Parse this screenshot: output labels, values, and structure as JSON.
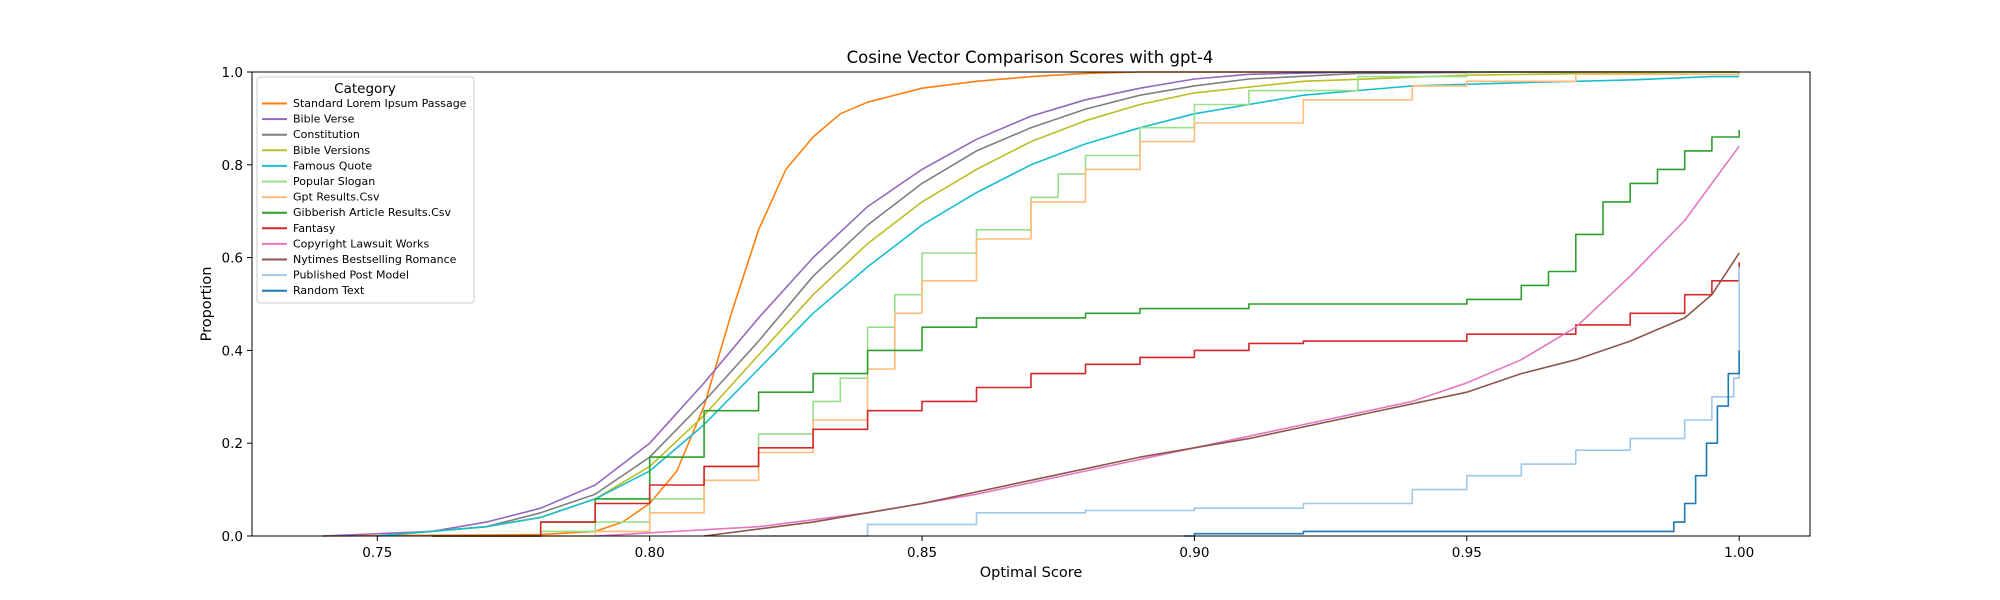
{
  "chart_data": {
    "type": "line",
    "title": "Cosine Vector Comparison Scores with gpt-4",
    "xlabel": "Optimal Score",
    "ylabel": "Proportion",
    "xlim": [
      0.727,
      1.013
    ],
    "ylim": [
      0,
      1.0
    ],
    "xticks": [
      "0.75",
      "0.80",
      "0.85",
      "0.90",
      "0.95",
      "1.00"
    ],
    "xtick_values": [
      0.75,
      0.8,
      0.85,
      0.9,
      0.95,
      1.0
    ],
    "yticks": [
      "0.0",
      "0.2",
      "0.4",
      "0.6",
      "0.8",
      "1.0"
    ],
    "ytick_values": [
      0.0,
      0.2,
      0.4,
      0.6,
      0.8,
      1.0
    ],
    "grid": false,
    "legend": {
      "title": "Category",
      "placement": "top-left"
    },
    "series": [
      {
        "name": "Standard Lorem Ipsum Passage",
        "color": "#ff7f0e",
        "step": false,
        "points": [
          [
            0.74,
            0.0
          ],
          [
            0.78,
            0.003
          ],
          [
            0.79,
            0.01
          ],
          [
            0.795,
            0.03
          ],
          [
            0.8,
            0.07
          ],
          [
            0.805,
            0.14
          ],
          [
            0.81,
            0.28
          ],
          [
            0.815,
            0.48
          ],
          [
            0.82,
            0.66
          ],
          [
            0.825,
            0.79
          ],
          [
            0.83,
            0.86
          ],
          [
            0.835,
            0.91
          ],
          [
            0.84,
            0.935
          ],
          [
            0.85,
            0.965
          ],
          [
            0.86,
            0.98
          ],
          [
            0.87,
            0.99
          ],
          [
            0.88,
            0.997
          ],
          [
            0.89,
            1.0
          ],
          [
            1.0,
            1.0
          ]
        ]
      },
      {
        "name": "Bible Verse",
        "color": "#9467bd",
        "step": false,
        "points": [
          [
            0.74,
            0.0
          ],
          [
            0.76,
            0.01
          ],
          [
            0.77,
            0.03
          ],
          [
            0.78,
            0.06
          ],
          [
            0.79,
            0.11
          ],
          [
            0.8,
            0.2
          ],
          [
            0.81,
            0.33
          ],
          [
            0.82,
            0.47
          ],
          [
            0.83,
            0.6
          ],
          [
            0.84,
            0.71
          ],
          [
            0.85,
            0.79
          ],
          [
            0.86,
            0.855
          ],
          [
            0.87,
            0.905
          ],
          [
            0.88,
            0.94
          ],
          [
            0.89,
            0.965
          ],
          [
            0.9,
            0.985
          ],
          [
            0.91,
            0.995
          ],
          [
            0.93,
            1.0
          ],
          [
            1.0,
            1.0
          ]
        ]
      },
      {
        "name": "Constitution",
        "color": "#7f7f7f",
        "step": false,
        "points": [
          [
            0.75,
            0.0
          ],
          [
            0.77,
            0.02
          ],
          [
            0.78,
            0.05
          ],
          [
            0.79,
            0.09
          ],
          [
            0.8,
            0.17
          ],
          [
            0.81,
            0.29
          ],
          [
            0.82,
            0.42
          ],
          [
            0.83,
            0.56
          ],
          [
            0.84,
            0.67
          ],
          [
            0.85,
            0.76
          ],
          [
            0.86,
            0.83
          ],
          [
            0.87,
            0.88
          ],
          [
            0.88,
            0.92
          ],
          [
            0.89,
            0.95
          ],
          [
            0.9,
            0.97
          ],
          [
            0.91,
            0.985
          ],
          [
            0.93,
            0.997
          ],
          [
            0.96,
            1.0
          ],
          [
            1.0,
            1.0
          ]
        ]
      },
      {
        "name": "Bible Versions",
        "color": "#bcbd22",
        "step": false,
        "points": [
          [
            0.75,
            0.0
          ],
          [
            0.77,
            0.02
          ],
          [
            0.78,
            0.04
          ],
          [
            0.79,
            0.08
          ],
          [
            0.8,
            0.15
          ],
          [
            0.81,
            0.26
          ],
          [
            0.82,
            0.39
          ],
          [
            0.83,
            0.52
          ],
          [
            0.84,
            0.63
          ],
          [
            0.85,
            0.72
          ],
          [
            0.86,
            0.79
          ],
          [
            0.87,
            0.85
          ],
          [
            0.88,
            0.895
          ],
          [
            0.89,
            0.93
          ],
          [
            0.9,
            0.955
          ],
          [
            0.92,
            0.98
          ],
          [
            0.95,
            0.993
          ],
          [
            0.98,
            0.998
          ],
          [
            1.0,
            1.0
          ]
        ]
      },
      {
        "name": "Famous Quote",
        "color": "#17becf",
        "step": false,
        "points": [
          [
            0.75,
            0.0
          ],
          [
            0.77,
            0.02
          ],
          [
            0.78,
            0.04
          ],
          [
            0.79,
            0.08
          ],
          [
            0.8,
            0.14
          ],
          [
            0.81,
            0.24
          ],
          [
            0.82,
            0.36
          ],
          [
            0.83,
            0.48
          ],
          [
            0.84,
            0.58
          ],
          [
            0.85,
            0.67
          ],
          [
            0.86,
            0.74
          ],
          [
            0.87,
            0.8
          ],
          [
            0.88,
            0.845
          ],
          [
            0.89,
            0.88
          ],
          [
            0.9,
            0.91
          ],
          [
            0.92,
            0.95
          ],
          [
            0.94,
            0.97
          ],
          [
            0.96,
            0.977
          ],
          [
            0.98,
            0.983
          ],
          [
            0.995,
            0.99
          ],
          [
            1.0,
            0.99
          ]
        ]
      },
      {
        "name": "Popular Slogan",
        "color": "#98df8a",
        "step": true,
        "points": [
          [
            0.76,
            0.0
          ],
          [
            0.78,
            0.01
          ],
          [
            0.79,
            0.03
          ],
          [
            0.8,
            0.08
          ],
          [
            0.81,
            0.15
          ],
          [
            0.82,
            0.22
          ],
          [
            0.83,
            0.29
          ],
          [
            0.835,
            0.34
          ],
          [
            0.84,
            0.45
          ],
          [
            0.845,
            0.52
          ],
          [
            0.85,
            0.61
          ],
          [
            0.86,
            0.66
          ],
          [
            0.87,
            0.73
          ],
          [
            0.875,
            0.78
          ],
          [
            0.88,
            0.82
          ],
          [
            0.89,
            0.88
          ],
          [
            0.9,
            0.93
          ],
          [
            0.91,
            0.96
          ],
          [
            0.93,
            0.99
          ],
          [
            0.95,
            1.0
          ],
          [
            1.0,
            1.0
          ]
        ]
      },
      {
        "name": "Gpt Results.Csv",
        "color": "#ffbb78",
        "step": true,
        "points": [
          [
            0.77,
            0.0
          ],
          [
            0.79,
            0.01
          ],
          [
            0.8,
            0.05
          ],
          [
            0.81,
            0.12
          ],
          [
            0.82,
            0.18
          ],
          [
            0.83,
            0.25
          ],
          [
            0.84,
            0.36
          ],
          [
            0.845,
            0.48
          ],
          [
            0.85,
            0.55
          ],
          [
            0.86,
            0.64
          ],
          [
            0.87,
            0.72
          ],
          [
            0.88,
            0.79
          ],
          [
            0.89,
            0.85
          ],
          [
            0.9,
            0.89
          ],
          [
            0.92,
            0.94
          ],
          [
            0.94,
            0.97
          ],
          [
            0.95,
            0.98
          ],
          [
            0.97,
            0.995
          ],
          [
            1.0,
            1.0
          ]
        ]
      },
      {
        "name": "Gibberish Article Results.Csv",
        "color": "#2ca02c",
        "step": true,
        "points": [
          [
            0.76,
            0.0
          ],
          [
            0.78,
            0.03
          ],
          [
            0.79,
            0.08
          ],
          [
            0.8,
            0.17
          ],
          [
            0.81,
            0.27
          ],
          [
            0.82,
            0.31
          ],
          [
            0.83,
            0.35
          ],
          [
            0.84,
            0.4
          ],
          [
            0.85,
            0.45
          ],
          [
            0.86,
            0.47
          ],
          [
            0.88,
            0.48
          ],
          [
            0.89,
            0.49
          ],
          [
            0.91,
            0.5
          ],
          [
            0.95,
            0.51
          ],
          [
            0.96,
            0.54
          ],
          [
            0.965,
            0.57
          ],
          [
            0.97,
            0.65
          ],
          [
            0.975,
            0.72
          ],
          [
            0.98,
            0.76
          ],
          [
            0.985,
            0.79
          ],
          [
            0.99,
            0.83
          ],
          [
            0.995,
            0.86
          ],
          [
            1.0,
            0.875
          ]
        ]
      },
      {
        "name": "Fantasy",
        "color": "#d62728",
        "step": true,
        "points": [
          [
            0.76,
            0.0
          ],
          [
            0.78,
            0.03
          ],
          [
            0.79,
            0.07
          ],
          [
            0.8,
            0.11
          ],
          [
            0.81,
            0.15
          ],
          [
            0.82,
            0.19
          ],
          [
            0.83,
            0.23
          ],
          [
            0.84,
            0.27
          ],
          [
            0.85,
            0.29
          ],
          [
            0.86,
            0.32
          ],
          [
            0.87,
            0.35
          ],
          [
            0.88,
            0.37
          ],
          [
            0.89,
            0.385
          ],
          [
            0.9,
            0.4
          ],
          [
            0.91,
            0.415
          ],
          [
            0.92,
            0.42
          ],
          [
            0.95,
            0.435
          ],
          [
            0.97,
            0.455
          ],
          [
            0.98,
            0.48
          ],
          [
            0.99,
            0.52
          ],
          [
            0.995,
            0.55
          ],
          [
            1.0,
            0.59
          ]
        ]
      },
      {
        "name": "Copyright Lawsuit Works",
        "color": "#e377c2",
        "step": false,
        "points": [
          [
            0.79,
            0.0
          ],
          [
            0.82,
            0.02
          ],
          [
            0.84,
            0.05
          ],
          [
            0.86,
            0.09
          ],
          [
            0.88,
            0.14
          ],
          [
            0.9,
            0.19
          ],
          [
            0.92,
            0.24
          ],
          [
            0.94,
            0.29
          ],
          [
            0.95,
            0.33
          ],
          [
            0.96,
            0.38
          ],
          [
            0.97,
            0.45
          ],
          [
            0.98,
            0.56
          ],
          [
            0.99,
            0.68
          ],
          [
            0.995,
            0.76
          ],
          [
            1.0,
            0.84
          ]
        ]
      },
      {
        "name": "Nytimes Bestselling Romance",
        "color": "#8c564b",
        "step": false,
        "points": [
          [
            0.81,
            0.0
          ],
          [
            0.83,
            0.03
          ],
          [
            0.85,
            0.07
          ],
          [
            0.87,
            0.12
          ],
          [
            0.89,
            0.17
          ],
          [
            0.91,
            0.21
          ],
          [
            0.93,
            0.26
          ],
          [
            0.95,
            0.31
          ],
          [
            0.96,
            0.35
          ],
          [
            0.97,
            0.38
          ],
          [
            0.98,
            0.42
          ],
          [
            0.99,
            0.47
          ],
          [
            0.995,
            0.52
          ],
          [
            1.0,
            0.61
          ]
        ]
      },
      {
        "name": "Published Post Model",
        "color": "#9ec8ea",
        "step": true,
        "points": [
          [
            0.82,
            0.0
          ],
          [
            0.84,
            0.025
          ],
          [
            0.86,
            0.05
          ],
          [
            0.88,
            0.055
          ],
          [
            0.9,
            0.06
          ],
          [
            0.92,
            0.07
          ],
          [
            0.94,
            0.1
          ],
          [
            0.95,
            0.13
          ],
          [
            0.96,
            0.155
          ],
          [
            0.97,
            0.185
          ],
          [
            0.98,
            0.21
          ],
          [
            0.99,
            0.25
          ],
          [
            0.995,
            0.3
          ],
          [
            0.999,
            0.34
          ],
          [
            1.0,
            0.58
          ]
        ]
      },
      {
        "name": "Random Text",
        "color": "#1f77b4",
        "step": true,
        "points": [
          [
            0.898,
            0.0
          ],
          [
            0.9,
            0.005
          ],
          [
            0.92,
            0.01
          ],
          [
            0.985,
            0.01
          ],
          [
            0.988,
            0.03
          ],
          [
            0.99,
            0.07
          ],
          [
            0.992,
            0.13
          ],
          [
            0.994,
            0.2
          ],
          [
            0.996,
            0.28
          ],
          [
            0.998,
            0.35
          ],
          [
            1.0,
            0.4
          ]
        ]
      }
    ]
  }
}
